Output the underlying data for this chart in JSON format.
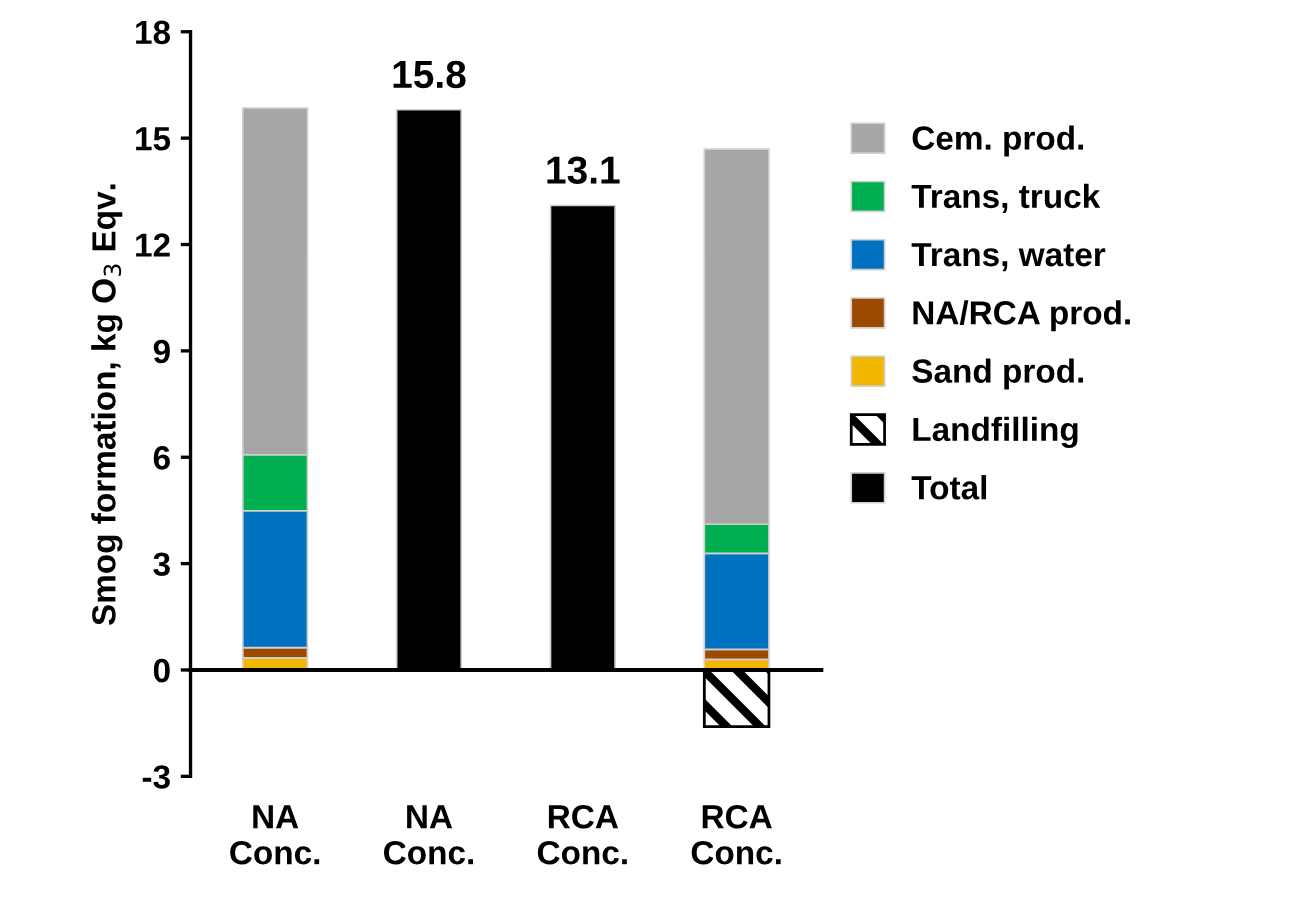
{
  "chart_data": {
    "type": "bar",
    "stacked": true,
    "ylabel": "Smog formation, kg O$_{3}$ Eqv.",
    "categories": [
      "NA\nConc.",
      "NA\nConc.",
      "RCA\nConc.",
      "RCA\nConc."
    ],
    "series": [
      {
        "name": "Sand prod.",
        "color": "#f2b700",
        "values": [
          0.34,
          null,
          null,
          0.3
        ]
      },
      {
        "name": "NA/RCA prod.",
        "color": "#9c4a00",
        "values": [
          0.29,
          null,
          null,
          0.28
        ]
      },
      {
        "name": "Trans, water",
        "color": "#0070c0",
        "values": [
          3.86,
          null,
          null,
          2.71
        ]
      },
      {
        "name": "Trans, truck",
        "color": "#00b050",
        "values": [
          1.58,
          null,
          null,
          0.82
        ]
      },
      {
        "name": "Cem. prod.",
        "color": "#a6a6a6",
        "values": [
          9.78,
          null,
          null,
          10.58
        ]
      },
      {
        "name": "Landfilling",
        "color": "#000000",
        "values": [
          null,
          null,
          null,
          -1.6
        ]
      },
      {
        "name": "Total",
        "color": "#000000",
        "values": [
          null,
          15.8,
          13.1,
          null
        ],
        "value_labels": [
          null,
          "15.8",
          "13.1",
          null
        ]
      }
    ],
    "ylim": [
      -3,
      18
    ],
    "yticks": [
      -3,
      0,
      3,
      6,
      9,
      12,
      15,
      18
    ],
    "legend": "right"
  }
}
